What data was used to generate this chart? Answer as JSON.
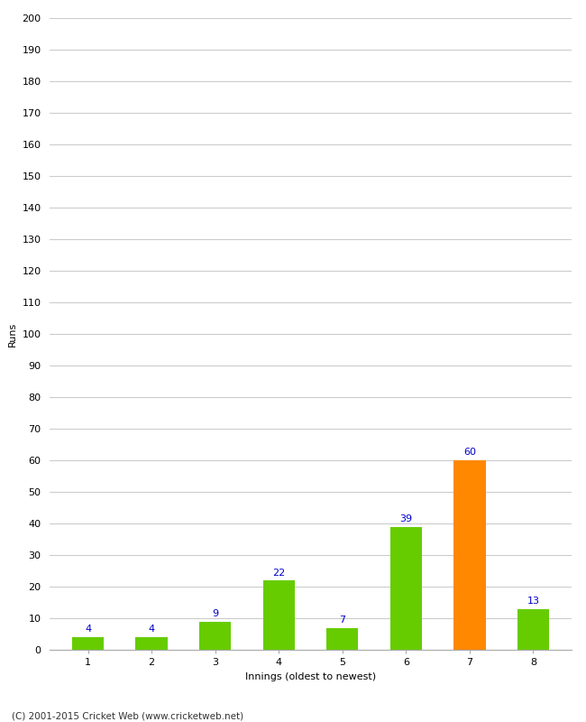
{
  "categories": [
    "1",
    "2",
    "3",
    "4",
    "5",
    "6",
    "7",
    "8"
  ],
  "values": [
    4,
    4,
    9,
    22,
    7,
    39,
    60,
    13
  ],
  "bar_colors": [
    "#66cc00",
    "#66cc00",
    "#66cc00",
    "#66cc00",
    "#66cc00",
    "#66cc00",
    "#ff8800",
    "#66cc00"
  ],
  "xlabel": "Innings (oldest to newest)",
  "ylabel": "Runs",
  "ylim": [
    0,
    200
  ],
  "yticks": [
    0,
    10,
    20,
    30,
    40,
    50,
    60,
    70,
    80,
    90,
    100,
    110,
    120,
    130,
    140,
    150,
    160,
    170,
    180,
    190,
    200
  ],
  "label_color": "#0000cc",
  "label_fontsize": 8,
  "axis_fontsize": 8,
  "footer": "(C) 2001-2015 Cricket Web (www.cricketweb.net)",
  "background_color": "#ffffff",
  "grid_color": "#cccccc",
  "bar_width": 0.5
}
